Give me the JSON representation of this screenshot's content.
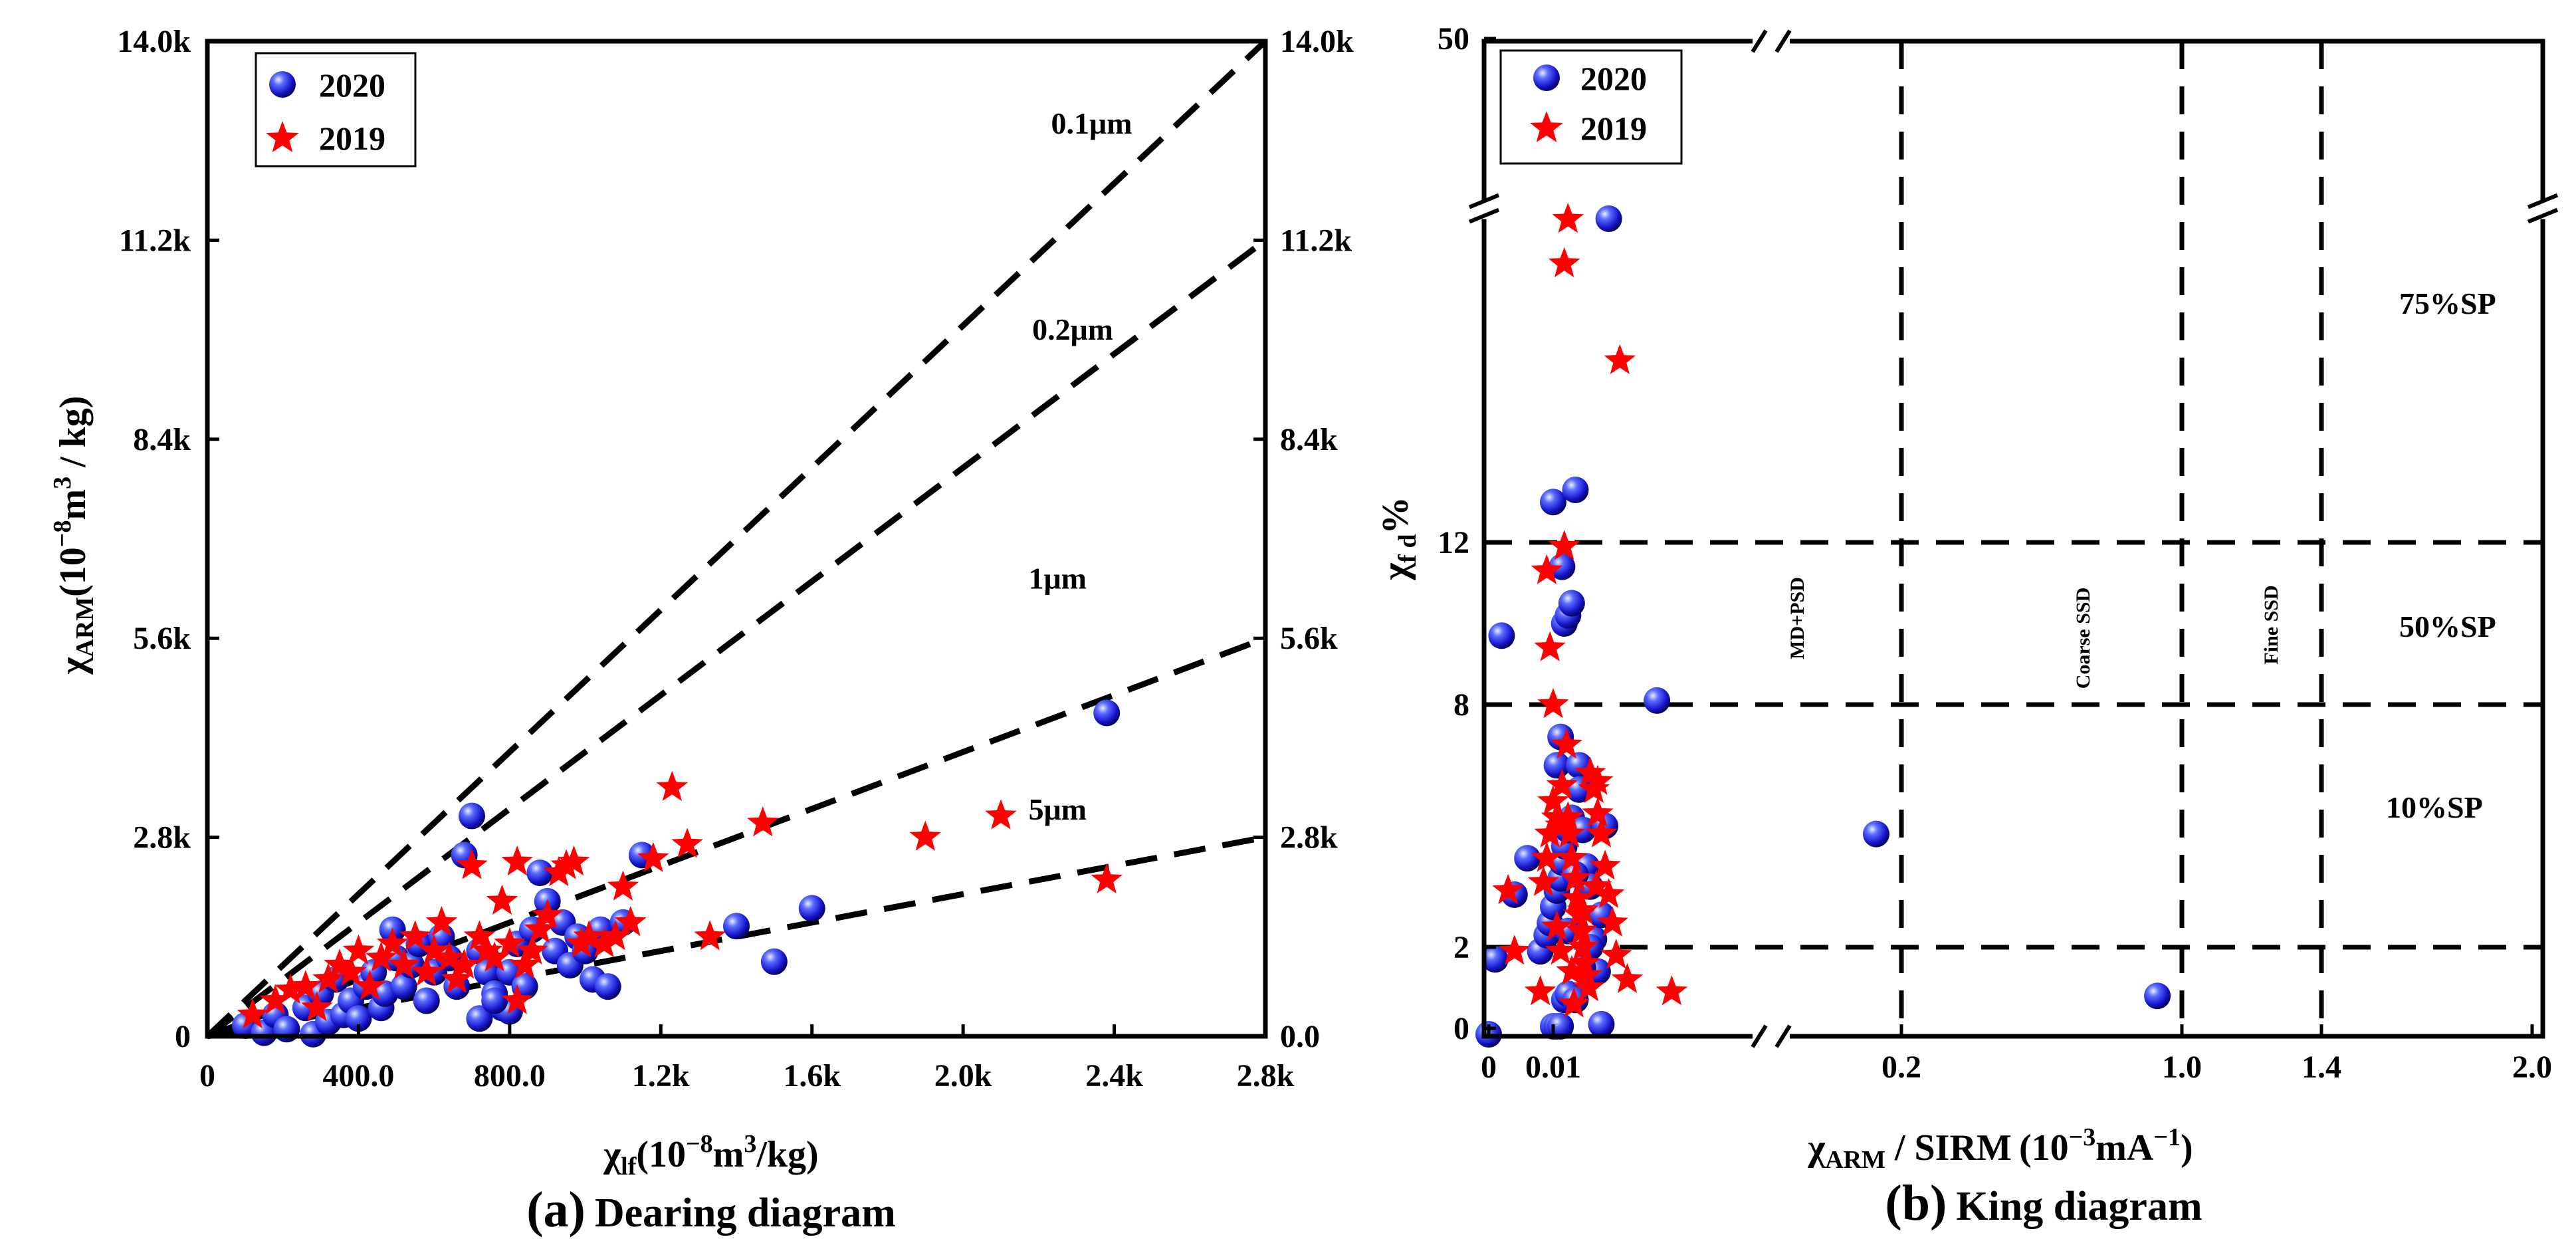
{
  "caption_a": {
    "label": "(a)",
    "title": "Dearing  diagram"
  },
  "caption_b": {
    "label": "(b)",
    "title": "King diagram"
  },
  "colors": {
    "series_2020": "#1f1fd6",
    "series_2019": "#ff0000",
    "axis": "#000000"
  },
  "chart_data": [
    {
      "type": "scatter",
      "title": "Dearing diagram",
      "xlabel": {
        "base": "χ",
        "sub": "lf",
        "rest": "(10",
        "sup": "−8",
        "rest2": "m",
        "sup2": "3",
        "rest3": "/kg)"
      },
      "ylabel": {
        "base": "χ",
        "sub": "ARM",
        "rest": "(10",
        "sup": "−8",
        "rest2": "m",
        "sup2": "3",
        "rest3": " / kg)"
      },
      "xlim": [
        0,
        2800
      ],
      "ylim": [
        0,
        14000
      ],
      "xticks": [
        0,
        400,
        800,
        1200,
        1600,
        2000,
        2400,
        2800
      ],
      "xtick_labels": [
        "0",
        "400.0",
        "800.0",
        "1.2k",
        "1.6k",
        "2.0k",
        "2.4k",
        "2.8k"
      ],
      "yticks": [
        0,
        2800,
        5600,
        8400,
        11200,
        14000
      ],
      "ytick_labels": [
        "0",
        "2.8k",
        "5.6k",
        "8.4k",
        "11.2k",
        "14.0k"
      ],
      "ytick_labels_right": [
        "0.0",
        "2.8k",
        "5.6k",
        "8.4k",
        "11.2k",
        "14.0k"
      ],
      "legend": {
        "position": "top-left",
        "entries": [
          "2020",
          "2019"
        ]
      },
      "reference_lines": [
        {
          "label": "0.1μm",
          "slope": 5.0,
          "label_at": [
            2340,
            12700
          ]
        },
        {
          "label": "0.2μm",
          "slope": 4.0,
          "label_at": [
            2290,
            9800
          ]
        },
        {
          "label": "1μm",
          "slope": 2.0,
          "label_at": [
            2250,
            6300
          ]
        },
        {
          "label": "5μm",
          "slope": 1.0,
          "label_at": [
            2250,
            3050
          ]
        }
      ],
      "series": [
        {
          "name": "2020",
          "marker": "sphere",
          "points": [
            [
              100,
              150
            ],
            [
              150,
              50
            ],
            [
              180,
              300
            ],
            [
              210,
              100
            ],
            [
              260,
              400
            ],
            [
              280,
              30
            ],
            [
              300,
              600
            ],
            [
              320,
              200
            ],
            [
              340,
              800
            ],
            [
              360,
              300
            ],
            [
              380,
              500
            ],
            [
              400,
              250
            ],
            [
              420,
              700
            ],
            [
              440,
              900
            ],
            [
              460,
              400
            ],
            [
              470,
              600
            ],
            [
              490,
              1500
            ],
            [
              500,
              1100
            ],
            [
              520,
              700
            ],
            [
              540,
              1000
            ],
            [
              560,
              1300
            ],
            [
              580,
              500
            ],
            [
              600,
              900
            ],
            [
              620,
              1400
            ],
            [
              640,
              1100
            ],
            [
              660,
              700
            ],
            [
              680,
              2550
            ],
            [
              700,
              3100
            ],
            [
              720,
              1200
            ],
            [
              740,
              900
            ],
            [
              760,
              600
            ],
            [
              780,
              400
            ],
            [
              800,
              900
            ],
            [
              820,
              1300
            ],
            [
              840,
              700
            ],
            [
              860,
              1500
            ],
            [
              880,
              2300
            ],
            [
              900,
              1900
            ],
            [
              920,
              1200
            ],
            [
              940,
              1600
            ],
            [
              960,
              1000
            ],
            [
              980,
              1400
            ],
            [
              1000,
              1200
            ],
            [
              1020,
              800
            ],
            [
              1040,
              1500
            ],
            [
              1060,
              700
            ],
            [
              1100,
              1600
            ],
            [
              1150,
              2550
            ],
            [
              1400,
              1550
            ],
            [
              1500,
              1050
            ],
            [
              1600,
              1800
            ],
            [
              2380,
              4550
            ],
            [
              720,
              250
            ],
            [
              800,
              350
            ],
            [
              760,
              500
            ]
          ]
        },
        {
          "name": "2019",
          "marker": "star",
          "points": [
            [
              120,
              300
            ],
            [
              180,
              500
            ],
            [
              220,
              650
            ],
            [
              260,
              700
            ],
            [
              290,
              400
            ],
            [
              320,
              800
            ],
            [
              350,
              1000
            ],
            [
              380,
              900
            ],
            [
              400,
              1200
            ],
            [
              430,
              700
            ],
            [
              460,
              1100
            ],
            [
              490,
              1300
            ],
            [
              520,
              1000
            ],
            [
              550,
              1400
            ],
            [
              580,
              900
            ],
            [
              600,
              1200
            ],
            [
              620,
              1600
            ],
            [
              640,
              1100
            ],
            [
              660,
              800
            ],
            [
              680,
              1000
            ],
            [
              700,
              2400
            ],
            [
              720,
              1400
            ],
            [
              740,
              1200
            ],
            [
              760,
              1100
            ],
            [
              780,
              1900
            ],
            [
              800,
              1300
            ],
            [
              820,
              2450
            ],
            [
              840,
              1000
            ],
            [
              860,
              1200
            ],
            [
              880,
              1500
            ],
            [
              900,
              1700
            ],
            [
              930,
              2300
            ],
            [
              950,
              2400
            ],
            [
              970,
              2450
            ],
            [
              990,
              1300
            ],
            [
              1010,
              1400
            ],
            [
              1050,
              1300
            ],
            [
              1080,
              1400
            ],
            [
              1120,
              1600
            ],
            [
              1180,
              2500
            ],
            [
              1230,
              3500
            ],
            [
              1270,
              2700
            ],
            [
              1330,
              1400
            ],
            [
              1470,
              3000
            ],
            [
              1900,
              2800
            ],
            [
              2100,
              3100
            ],
            [
              2380,
              2200
            ],
            [
              820,
              500
            ],
            [
              1100,
              2100
            ]
          ]
        }
      ]
    },
    {
      "type": "scatter",
      "title": "King diagram",
      "xlabel": {
        "base": "χ",
        "sub": "ARM",
        "rest": " / SIRM (10",
        "sup": "−3",
        "rest2": "mA",
        "sup2": "−1",
        "rest3": ")"
      },
      "ylabel": {
        "base": "χ",
        "sub": "f d",
        "rest": "%"
      },
      "xlim": [
        0,
        2.0
      ],
      "ylim": [
        0,
        50
      ],
      "axis_break": {
        "x_between": [
          0.03,
          0.18
        ],
        "y_between": [
          20,
          45
        ]
      },
      "xticks": [
        0,
        0.01,
        0.2,
        1.0,
        1.4,
        2.0
      ],
      "xtick_labels": [
        "0",
        "0.01",
        "0.2",
        "1.0",
        "1.4",
        "2.0"
      ],
      "yticks": [
        0,
        2,
        8,
        12,
        50
      ],
      "ytick_labels": [
        "0",
        "2",
        "8",
        "12",
        "50"
      ],
      "legend": {
        "position": "top-left",
        "entries": [
          "2020",
          "2019"
        ]
      },
      "vertical_dividers": [
        0.2,
        1.0,
        1.4
      ],
      "horizontal_dividers": [
        2,
        8,
        12
      ],
      "region_labels": [
        "MD+PSD",
        "Coarse SSD",
        "Fine SSD"
      ],
      "band_labels": [
        "75%SP",
        "50%SP",
        "10%SP"
      ],
      "series": [
        {
          "name": "2020",
          "marker": "sphere",
          "points": [
            [
              0.0,
              -0.3
            ],
            [
              0.001,
              1.7
            ],
            [
              0.002,
              9.7
            ],
            [
              0.004,
              3.3
            ],
            [
              0.006,
              4.2
            ],
            [
              0.01,
              0.05
            ],
            [
              0.0105,
              0.05
            ],
            [
              0.011,
              0.05
            ],
            [
              0.0115,
              0.7
            ],
            [
              0.012,
              0.85
            ],
            [
              0.008,
              1.9
            ],
            [
              0.009,
              2.3
            ],
            [
              0.0095,
              2.6
            ],
            [
              0.01,
              3.0
            ],
            [
              0.0105,
              3.4
            ],
            [
              0.011,
              3.7
            ],
            [
              0.0112,
              4.1
            ],
            [
              0.0115,
              4.5
            ],
            [
              0.012,
              4.9
            ],
            [
              0.0125,
              5.2
            ],
            [
              0.0105,
              6.5
            ],
            [
              0.011,
              7.2
            ],
            [
              0.0115,
              10.0
            ],
            [
              0.012,
              10.2
            ],
            [
              0.0125,
              10.5
            ],
            [
              0.01,
              13.0
            ],
            [
              0.0112,
              11.4
            ],
            [
              0.013,
              13.3
            ],
            [
              0.0135,
              6.5
            ],
            [
              0.0135,
              5.9
            ],
            [
              0.014,
              4.9
            ],
            [
              0.0145,
              4.0
            ],
            [
              0.015,
              3.5
            ],
            [
              0.0155,
              2.2
            ],
            [
              0.016,
              1.4
            ],
            [
              0.0165,
              0.1
            ],
            [
              0.0165,
              2.8
            ],
            [
              0.017,
              5.0
            ],
            [
              0.013,
              0.7
            ],
            [
              0.014,
              1.5
            ],
            [
              0.015,
              2.0
            ],
            [
              0.013,
              3.8
            ],
            [
              0.012,
              2.4
            ],
            [
              0.0175,
              20.8
            ],
            [
              0.024,
              8.1
            ],
            [
              0.19,
              4.8
            ],
            [
              0.93,
              0.8
            ]
          ]
        },
        {
          "name": "2019",
          "marker": "star",
          "points": [
            [
              0.003,
              3.4
            ],
            [
              0.004,
              1.9
            ],
            [
              0.008,
              0.9
            ],
            [
              0.0085,
              3.6
            ],
            [
              0.009,
              4.2
            ],
            [
              0.0095,
              4.8
            ],
            [
              0.009,
              11.3
            ],
            [
              0.0095,
              9.4
            ],
            [
              0.01,
              8.0
            ],
            [
              0.01,
              5.6
            ],
            [
              0.0105,
              5.2
            ],
            [
              0.011,
              5.0
            ],
            [
              0.0112,
              6.0
            ],
            [
              0.0115,
              11.9
            ],
            [
              0.0115,
              18.9
            ],
            [
              0.012,
              20.0
            ],
            [
              0.0118,
              7.0
            ],
            [
              0.012,
              5.2
            ],
            [
              0.0122,
              4.8
            ],
            [
              0.0125,
              4.2
            ],
            [
              0.013,
              3.7
            ],
            [
              0.0132,
              3.2
            ],
            [
              0.0135,
              2.8
            ],
            [
              0.0138,
              2.4
            ],
            [
              0.014,
              2.0
            ],
            [
              0.0142,
              1.6
            ],
            [
              0.0145,
              1.3
            ],
            [
              0.0148,
              1.0
            ],
            [
              0.015,
              6.3
            ],
            [
              0.0155,
              5.9
            ],
            [
              0.016,
              5.3
            ],
            [
              0.0165,
              4.8
            ],
            [
              0.017,
              4.0
            ],
            [
              0.0175,
              3.3
            ],
            [
              0.018,
              2.6
            ],
            [
              0.0185,
              1.8
            ],
            [
              0.019,
              16.5
            ],
            [
              0.02,
              1.2
            ],
            [
              0.026,
              0.9
            ],
            [
              0.0105,
              2.5
            ],
            [
              0.011,
              1.9
            ],
            [
              0.0125,
              1.4
            ],
            [
              0.0128,
              0.6
            ],
            [
              0.014,
              2.9
            ],
            [
              0.0158,
              3.5
            ],
            [
              0.016,
              6.1
            ]
          ]
        }
      ]
    }
  ]
}
